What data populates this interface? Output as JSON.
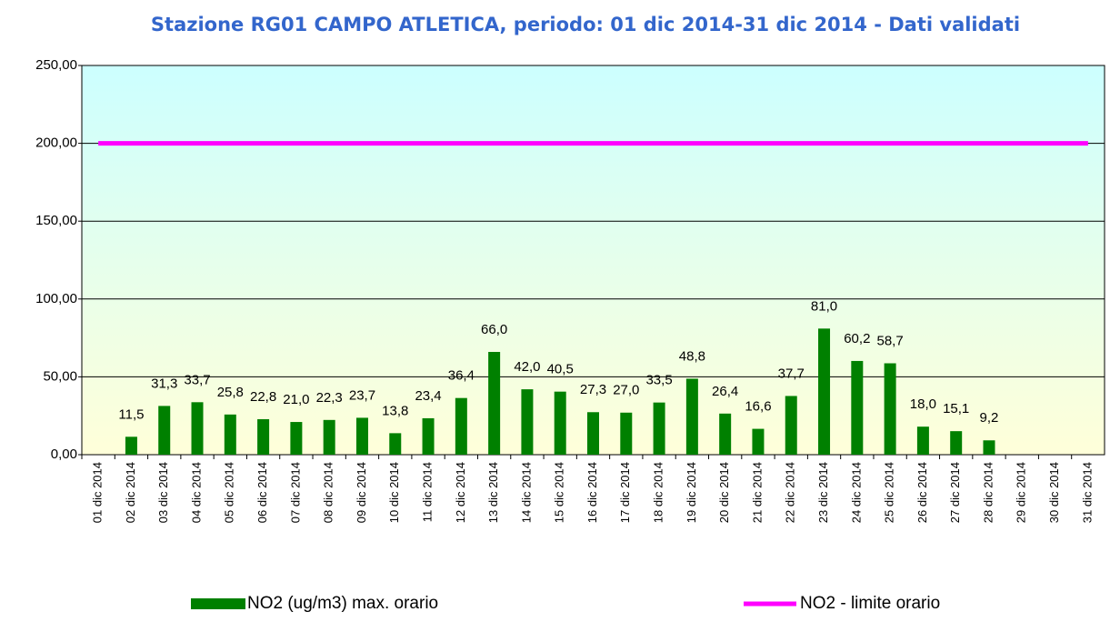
{
  "chart_data": {
    "type": "bar",
    "title": "Stazione RG01 CAMPO ATLETICA, periodo: 01 dic 2014-31 dic 2014 - Dati validati",
    "categories": [
      "01 dic 2014",
      "02 dic 2014",
      "03 dic 2014",
      "04 dic 2014",
      "05 dic 2014",
      "06 dic 2014",
      "07 dic 2014",
      "08 dic 2014",
      "09 dic 2014",
      "10 dic 2014",
      "11 dic 2014",
      "12 dic 2014",
      "13 dic 2014",
      "14 dic 2014",
      "15 dic 2014",
      "16 dic 2014",
      "17 dic 2014",
      "18 dic 2014",
      "19 dic 2014",
      "20 dic 2014",
      "21 dic 2014",
      "22 dic 2014",
      "23 dic 2014",
      "24 dic 2014",
      "25 dic 2014",
      "26 dic 2014",
      "27 dic 2014",
      "28 dic 2014",
      "29 dic 2014",
      "30 dic 2014",
      "31 dic 2014"
    ],
    "series": [
      {
        "name": "NO2 (ug/m3) max. orario",
        "type": "bar",
        "color": "#008000",
        "values": [
          null,
          11.5,
          31.3,
          33.7,
          25.8,
          22.8,
          21.0,
          22.3,
          23.7,
          13.8,
          23.4,
          36.4,
          66.0,
          42.0,
          40.5,
          27.3,
          27.0,
          33.5,
          48.8,
          26.4,
          16.6,
          37.7,
          81.0,
          60.2,
          58.7,
          18.0,
          15.1,
          9.2,
          null,
          null,
          null
        ],
        "value_labels": [
          null,
          "11,5",
          "31,3",
          "33,7",
          "25,8",
          "22,8",
          "21,0",
          "22,3",
          "23,7",
          "13,8",
          "23,4",
          "36,4",
          "66,0",
          "42,0",
          "40,5",
          "27,3",
          "27,0",
          "33,5",
          "48,8",
          "26,4",
          "16,6",
          "37,7",
          "81,0",
          "60,2",
          "58,7",
          "18,0",
          "15,1",
          "9,2",
          null,
          null,
          null
        ]
      },
      {
        "name": "NO2 - limite orario",
        "type": "line",
        "color": "#ff00ff",
        "values": [
          200,
          200,
          200,
          200,
          200,
          200,
          200,
          200,
          200,
          200,
          200,
          200,
          200,
          200,
          200,
          200,
          200,
          200,
          200,
          200,
          200,
          200,
          200,
          200,
          200,
          200,
          200,
          200,
          200,
          200,
          200
        ]
      }
    ],
    "ylim": [
      0,
      250
    ],
    "yticks": [
      {
        "value": 0,
        "label": "0,00"
      },
      {
        "value": 50,
        "label": "50,00"
      },
      {
        "value": 100,
        "label": "100,00"
      },
      {
        "value": 150,
        "label": "150,00"
      },
      {
        "value": 200,
        "label": "200,00"
      },
      {
        "value": 250,
        "label": "250,00"
      }
    ],
    "grid": true,
    "legend": "bottom"
  }
}
